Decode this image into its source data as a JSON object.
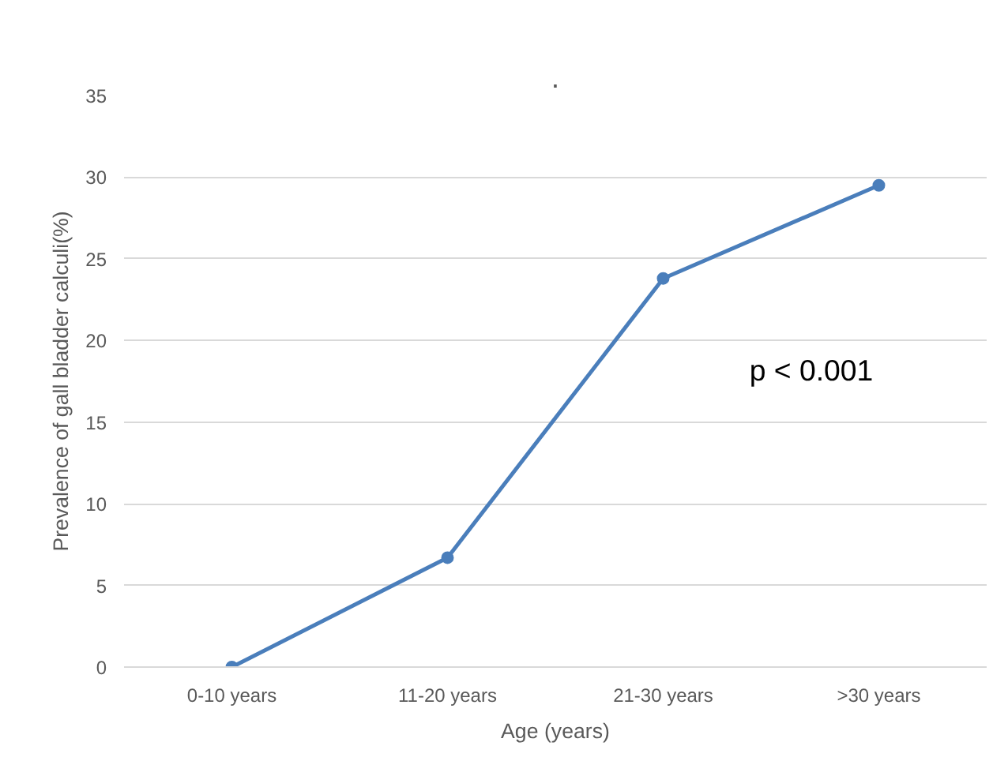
{
  "chart_data": {
    "type": "line",
    "title": ".",
    "xlabel": "Age (years)",
    "ylabel": "Prevalence of gall bladder calculi(%)",
    "categories": [
      "0-10 years",
      "11-20 years",
      "21-30 years",
      ">30 years"
    ],
    "series": [
      {
        "color": "#4a7ebb",
        "values": [
          0,
          6.7,
          23.8,
          29.5
        ]
      }
    ],
    "ylim": [
      0,
      35
    ],
    "yticks": [
      0,
      5,
      10,
      15,
      20,
      25,
      30,
      35
    ],
    "grid": "y",
    "marker": "circle",
    "line_style": "solid",
    "annotations": [
      "p < 0.001"
    ]
  }
}
